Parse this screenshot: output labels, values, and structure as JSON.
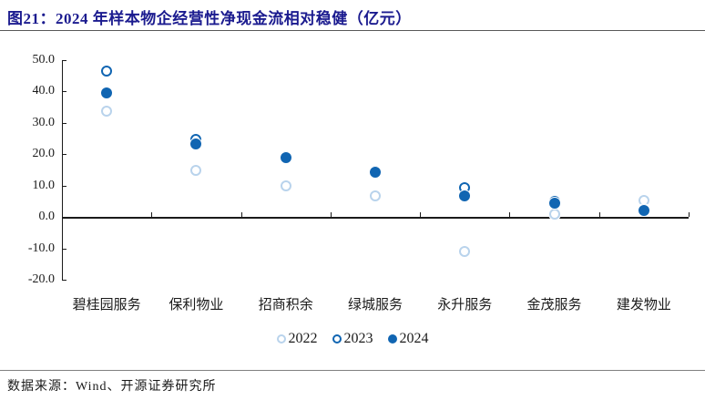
{
  "header": {
    "title": "图21：2024 年样本物企经营性净现金流相对稳健（亿元）"
  },
  "footer": {
    "source": "数据来源：Wind、开源证券研究所"
  },
  "colors": {
    "title_navy": "#1b1b8f",
    "marker_dark_blue": "#1065b2",
    "marker_light_blue": "#b9d3ec",
    "axis_black": "#1a1a1a"
  },
  "chart_data": {
    "type": "scatter",
    "title": "图21：2024 年样本物企经营性净现金流相对稳健（亿元）",
    "unit": "亿元",
    "categories": [
      "碧桂园服务",
      "保利物业",
      "招商积余",
      "绿城服务",
      "永升服务",
      "金茂服务",
      "建发物业"
    ],
    "series": [
      {
        "name": "2022",
        "style": "open",
        "color": "#b9d3ec",
        "values": [
          33.5,
          14.9,
          9.9,
          6.8,
          -10.9,
          0.9,
          5.1
        ]
      },
      {
        "name": "2023",
        "style": "open",
        "color": "#1065b2",
        "values": [
          46.5,
          24.7,
          19.0,
          14.5,
          9.4,
          4.8,
          2.3
        ]
      },
      {
        "name": "2024",
        "style": "filled",
        "color": "#1065b2",
        "values": [
          39.4,
          23.2,
          18.9,
          14.3,
          6.8,
          4.4,
          1.9
        ]
      }
    ],
    "ylim": [
      -20,
      50
    ],
    "ytick_step": 10,
    "yticks": [
      "50.0",
      "40.0",
      "30.0",
      "20.0",
      "10.0",
      "0.0",
      "-10.0",
      "-20.0"
    ],
    "grid": false,
    "legend_position": "bottom",
    "legend_entries": [
      "2022",
      "2023",
      "2024"
    ]
  }
}
